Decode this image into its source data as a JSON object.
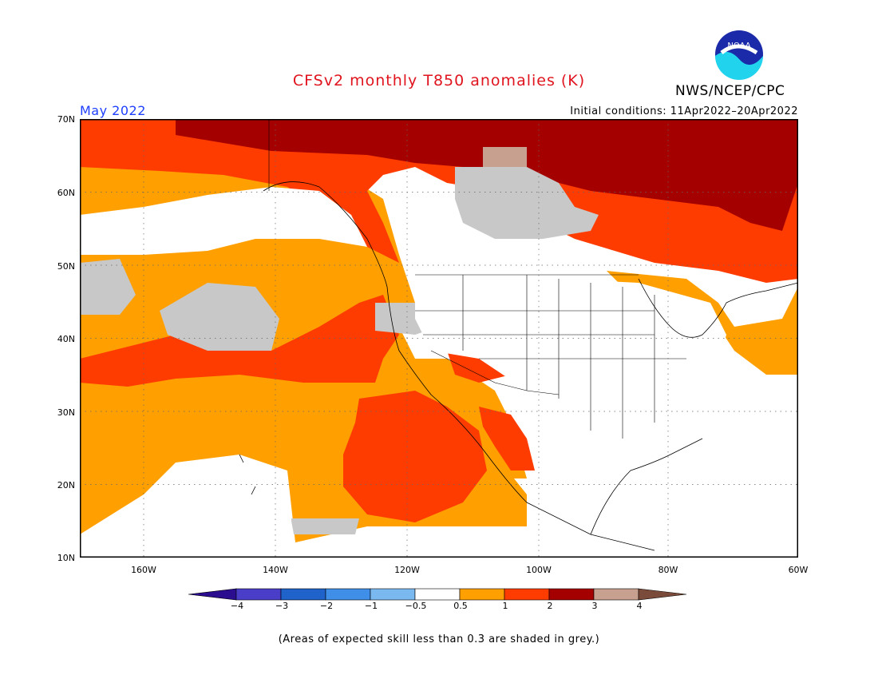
{
  "title": "CFSv2 monthly T850 anomalies (K)",
  "agency": "NWS/NCEP/CPC",
  "logo_text": "NOAA",
  "month_label": "May 2022",
  "initial_conditions": "Initial conditions: 11Apr2022–20Apr2022",
  "lat_labels": [
    "70N",
    "60N",
    "50N",
    "40N",
    "30N",
    "20N",
    "10N"
  ],
  "lon_labels": [
    "160W",
    "140W",
    "120W",
    "100W",
    "80W",
    "60W"
  ],
  "colorbar": {
    "labels": [
      "−4",
      "−3",
      "−2",
      "−1",
      "−0.5",
      "0.5",
      "1",
      "2",
      "3",
      "4"
    ],
    "colors": [
      "#2b0d8f",
      "#4a3ec9",
      "#1f62c9",
      "#3f8fe8",
      "#7ab8f0",
      "#ffffff",
      "#ff9f00",
      "#ff3c00",
      "#a50000",
      "#c8a090",
      "#7a4a3a"
    ]
  },
  "footnote": "(Areas of expected skill less than 0.3 are shaded in grey.)",
  "colors": {
    "title": "#e0141e",
    "month": "#1f3fff",
    "grey_skill": "#c8c8c8",
    "anom_0_5_1": "#ff9f00",
    "anom_1_2": "#ff3c00",
    "anom_2_3": "#a50000",
    "anom_3_4": "#c8a090",
    "anom_neg_1_0_5": "#7ab8f0"
  }
}
